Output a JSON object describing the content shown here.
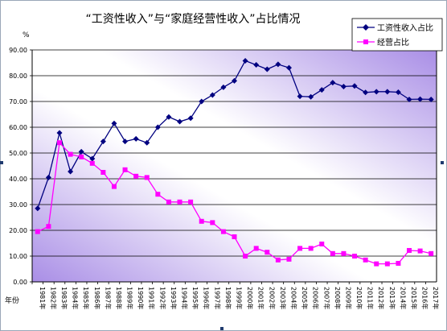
{
  "chart_data": {
    "type": "line",
    "title": "“工资性收入”与“家庭经营性收入”占比情况",
    "y_unit_label": "%",
    "x_unit_label": "年份",
    "ylim": [
      0,
      90
    ],
    "yticks": [
      "0.00",
      "10.00",
      "20.00",
      "30.00",
      "40.00",
      "50.00",
      "60.00",
      "70.00",
      "80.00",
      "90.00"
    ],
    "grid": "horizontal",
    "legend_position": "top-right",
    "categories": [
      "1981年",
      "1982年",
      "1983年",
      "1984年",
      "1985年",
      "1986年",
      "1987年",
      "1988年",
      "1989年",
      "1990年",
      "1991年",
      "1992年",
      "1993年",
      "1994年",
      "1995年",
      "1996年",
      "1997年",
      "1998年",
      "1999年",
      "2000年",
      "2001年",
      "2002年",
      "2003年",
      "2004年",
      "2005年",
      "2006年",
      "2007年",
      "2008年",
      "2009年",
      "2010年",
      "2011年",
      "2012年",
      "2013年",
      "2014年",
      "2015年",
      "2016年",
      "2017年"
    ],
    "series": [
      {
        "name": "工资性收入占比",
        "color": "#000080",
        "marker": "diamond",
        "values": [
          28.5,
          40.5,
          57.8,
          42.8,
          50.5,
          47.8,
          54.5,
          61.5,
          54.5,
          55.5,
          54.0,
          60.0,
          64.0,
          62.2,
          63.5,
          70.0,
          72.5,
          75.5,
          78.0,
          85.8,
          84.2,
          82.5,
          84.4,
          83.1,
          72.0,
          71.8,
          74.5,
          77.3,
          75.8,
          76.0,
          73.5,
          73.8,
          73.8,
          73.6,
          70.8,
          70.9,
          70.8
        ]
      },
      {
        "name": "经营占比",
        "color": "#ff00ff",
        "marker": "square",
        "values": [
          19.5,
          21.5,
          54.0,
          49.5,
          48.5,
          46.0,
          42.5,
          37.0,
          43.5,
          41.0,
          40.5,
          34.0,
          31.0,
          31.0,
          31.0,
          23.5,
          23.0,
          19.5,
          17.5,
          10.0,
          13.0,
          11.5,
          8.5,
          8.8,
          13.0,
          13.0,
          14.7,
          11.0,
          11.0,
          10.0,
          8.5,
          7.0,
          7.0,
          7.2,
          12.2,
          12.0,
          11.0
        ]
      }
    ]
  }
}
